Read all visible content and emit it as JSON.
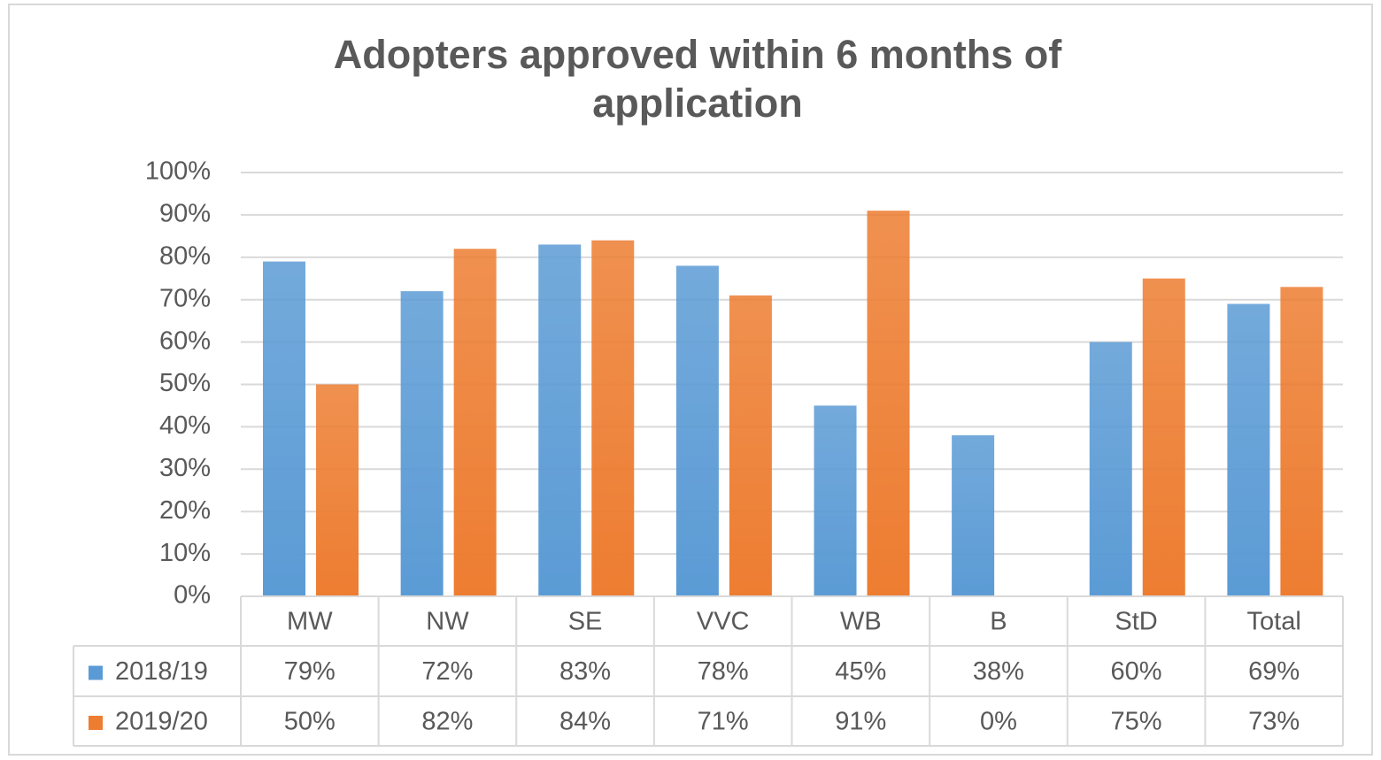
{
  "chart_data": {
    "type": "bar",
    "title": "Adopters approved within 6 months of application",
    "categories": [
      "MW",
      "NW",
      "SE",
      "VVC",
      "WB",
      "B",
      "StD",
      "Total"
    ],
    "series": [
      {
        "name": "2018/19",
        "color": "#5b9bd5",
        "values": [
          79,
          72,
          83,
          78,
          45,
          38,
          60,
          69
        ],
        "value_labels": [
          "79%",
          "72%",
          "83%",
          "78%",
          "45%",
          "38%",
          "60%",
          "69%"
        ]
      },
      {
        "name": "2019/20",
        "color": "#ed7d31",
        "values": [
          50,
          82,
          84,
          71,
          91,
          0,
          75,
          73
        ],
        "value_labels": [
          "50%",
          "82%",
          "84%",
          "71%",
          "91%",
          "0%",
          "75%",
          "73%"
        ]
      }
    ],
    "ylim": [
      0,
      100
    ],
    "yticks": [
      {
        "value": 0,
        "label": "0%"
      },
      {
        "value": 10,
        "label": "10%"
      },
      {
        "value": 20,
        "label": "20%"
      },
      {
        "value": 30,
        "label": "30%"
      },
      {
        "value": 40,
        "label": "40%"
      },
      {
        "value": 50,
        "label": "50%"
      },
      {
        "value": 60,
        "label": "60%"
      },
      {
        "value": 70,
        "label": "70%"
      },
      {
        "value": 80,
        "label": "80%"
      },
      {
        "value": 90,
        "label": "90%"
      },
      {
        "value": 100,
        "label": "100%"
      }
    ],
    "grid": true
  }
}
